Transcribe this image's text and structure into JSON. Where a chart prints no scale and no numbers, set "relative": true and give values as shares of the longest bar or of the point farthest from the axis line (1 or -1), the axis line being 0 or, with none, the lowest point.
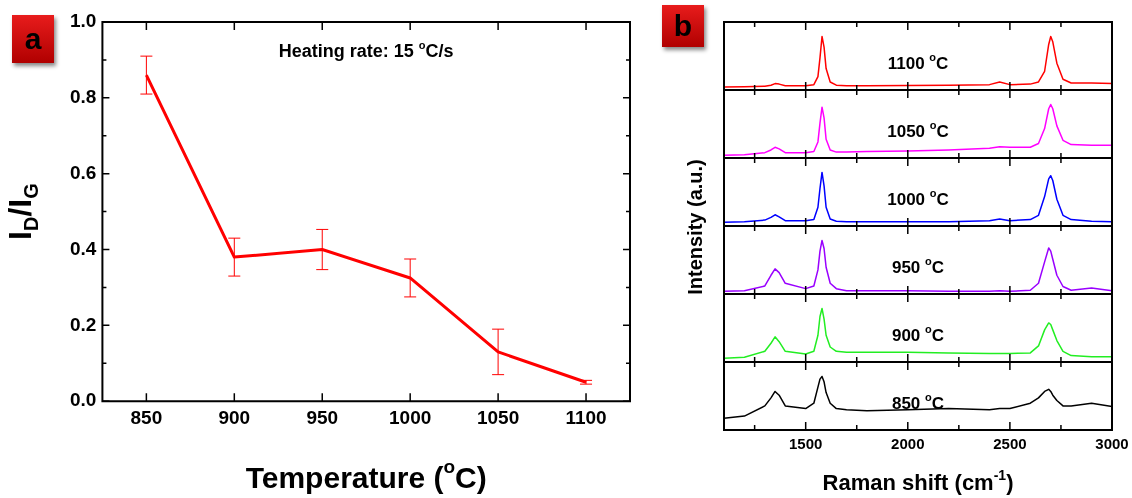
{
  "chart_data": [
    {
      "type": "line",
      "xlabel": "Temperature ($^{o}$C)",
      "ylabel": "I$_{D}$/I$_{G}$",
      "annotations": [
        "a",
        "Heating rate: 15 $^{o}$C/s"
      ],
      "x": [
        850,
        900,
        950,
        1000,
        1050,
        1100
      ],
      "values": [
        0.86,
        0.38,
        0.4,
        0.325,
        0.13,
        0.05
      ],
      "errors": [
        0.05,
        0.05,
        0.053,
        0.05,
        0.06,
        0.005
      ],
      "color": "#ff0000",
      "xlim": [
        825,
        1125
      ],
      "xticks": [
        850,
        900,
        950,
        1000,
        1050,
        1100
      ],
      "ylim": [
        0,
        1.0
      ],
      "yticks": [
        {
          "value": 0,
          "label": "0.0"
        },
        {
          "value": 0.1,
          "label": null
        },
        0.2,
        {
          "value": 0.3,
          "label": null
        },
        0.4,
        {
          "value": 0.5,
          "label": null
        },
        0.6,
        {
          "value": 0.7,
          "label": null
        },
        0.8,
        {
          "value": 0.9,
          "label": null
        },
        {
          "value": 1.0,
          "label": "1.0"
        }
      ],
      "marker": "none",
      "grid": false,
      "legend": false
    },
    {
      "type": "line",
      "relative": true,
      "annotations": [
        "b",
        "1100 $^{o}$C"
      ],
      "color": "#ff0000",
      "marker": "none",
      "legend": false,
      "tick_labels": false,
      "x": [
        1100,
        1200,
        1300,
        1330,
        1350,
        1370,
        1400,
        1500,
        1540,
        1560,
        1570,
        1580,
        1590,
        1600,
        1620,
        1650,
        1700,
        1800,
        2000,
        2200,
        2400,
        2450,
        2500,
        2600,
        2640,
        2670,
        2690,
        2700,
        2710,
        2730,
        2760,
        2800,
        2900,
        3000
      ],
      "values": [
        0.055,
        0.06,
        0.07,
        0.09,
        0.12,
        0.11,
        0.08,
        0.08,
        0.1,
        0.25,
        0.6,
        1,
        0.8,
        0.4,
        0.15,
        0.09,
        0.08,
        0.08,
        0.085,
        0.09,
        0.1,
        0.15,
        0.1,
        0.11,
        0.15,
        0.35,
        0.85,
        1,
        0.9,
        0.5,
        0.2,
        0.13,
        0.13,
        0.12
      ],
      "xlim": [
        1100,
        3000
      ],
      "xticks": [
        {
          "value": 1250,
          "label": null
        },
        1500,
        {
          "value": 1750,
          "label": null
        },
        2000,
        {
          "value": 2250,
          "label": null
        },
        2500,
        {
          "value": 2750,
          "label": null
        },
        3000
      ]
    },
    {
      "type": "line",
      "relative": true,
      "annotations": [
        "1050 $^{o}$C"
      ],
      "color": "#ff00ff",
      "marker": "none",
      "legend": false,
      "tick_labels": false,
      "x": [
        1100,
        1200,
        1300,
        1330,
        1350,
        1370,
        1400,
        1500,
        1540,
        1560,
        1570,
        1580,
        1590,
        1600,
        1620,
        1650,
        1700,
        1800,
        2000,
        2200,
        2400,
        2450,
        2500,
        2600,
        2640,
        2670,
        2690,
        2700,
        2710,
        2730,
        2760,
        2800,
        2900,
        3000
      ],
      "values": [
        0.05,
        0.06,
        0.1,
        0.15,
        0.2,
        0.17,
        0.1,
        0.1,
        0.12,
        0.3,
        0.65,
        0.95,
        0.75,
        0.35,
        0.15,
        0.11,
        0.11,
        0.12,
        0.13,
        0.15,
        0.18,
        0.21,
        0.2,
        0.2,
        0.27,
        0.55,
        0.92,
        1,
        0.92,
        0.6,
        0.33,
        0.25,
        0.24,
        0.24
      ],
      "xlim": [
        1100,
        3000
      ],
      "xticks": [
        {
          "value": 1250,
          "label": null
        },
        1500,
        {
          "value": 1750,
          "label": null
        },
        2000,
        {
          "value": 2250,
          "label": null
        },
        2500,
        {
          "value": 2750,
          "label": null
        },
        3000
      ]
    },
    {
      "type": "line",
      "relative": true,
      "annotations": [
        "1000 $^{o}$C"
      ],
      "ylabel": "Intensity (a.u.)",
      "color": "#0000ff",
      "marker": "none",
      "legend": false,
      "tick_labels": false,
      "x": [
        1100,
        1200,
        1300,
        1330,
        1350,
        1370,
        1400,
        1500,
        1540,
        1560,
        1570,
        1580,
        1590,
        1600,
        1620,
        1650,
        1700,
        1800,
        2000,
        2200,
        2400,
        2450,
        2500,
        2600,
        2640,
        2670,
        2690,
        2700,
        2710,
        2730,
        2760,
        2800,
        2900,
        3000
      ],
      "values": [
        0.07,
        0.08,
        0.11,
        0.16,
        0.21,
        0.17,
        0.1,
        0.1,
        0.12,
        0.35,
        0.7,
        1,
        0.75,
        0.35,
        0.13,
        0.09,
        0.08,
        0.08,
        0.08,
        0.08,
        0.1,
        0.13,
        0.1,
        0.12,
        0.2,
        0.55,
        0.88,
        0.94,
        0.85,
        0.5,
        0.2,
        0.12,
        0.09,
        0.08
      ],
      "xlim": [
        1100,
        3000
      ],
      "xticks": [
        {
          "value": 1250,
          "label": null
        },
        1500,
        {
          "value": 1750,
          "label": null
        },
        2000,
        {
          "value": 2250,
          "label": null
        },
        2500,
        {
          "value": 2750,
          "label": null
        },
        3000
      ]
    },
    {
      "type": "line",
      "relative": true,
      "annotations": [
        "950 $^{o}$C"
      ],
      "color": "#9900ff",
      "marker": "none",
      "legend": false,
      "tick_labels": false,
      "x": [
        1100,
        1200,
        1300,
        1330,
        1350,
        1370,
        1400,
        1500,
        1540,
        1560,
        1570,
        1580,
        1590,
        1600,
        1620,
        1650,
        1700,
        1800,
        2000,
        2200,
        2400,
        2450,
        2500,
        2600,
        2640,
        2670,
        2690,
        2700,
        2710,
        2730,
        2760,
        2800,
        2900,
        3000
      ],
      "values": [
        0.05,
        0.06,
        0.15,
        0.35,
        0.47,
        0.4,
        0.2,
        0.1,
        0.15,
        0.45,
        0.8,
        1,
        0.85,
        0.5,
        0.2,
        0.1,
        0.06,
        0.06,
        0.06,
        0.05,
        0.05,
        0.06,
        0.05,
        0.07,
        0.2,
        0.6,
        0.86,
        0.8,
        0.65,
        0.35,
        0.14,
        0.07,
        0.11,
        0.06
      ],
      "xlim": [
        1100,
        3000
      ],
      "xticks": [
        {
          "value": 1250,
          "label": null
        },
        1500,
        {
          "value": 1750,
          "label": null
        },
        2000,
        {
          "value": 2250,
          "label": null
        },
        2500,
        {
          "value": 2750,
          "label": null
        },
        3000
      ]
    },
    {
      "type": "line",
      "relative": true,
      "annotations": [
        "900 $^{o}$C"
      ],
      "color": "#22ee22",
      "marker": "none",
      "legend": false,
      "tick_labels": false,
      "x": [
        1100,
        1200,
        1300,
        1330,
        1350,
        1370,
        1400,
        1500,
        1540,
        1560,
        1570,
        1580,
        1590,
        1600,
        1620,
        1650,
        1700,
        1800,
        2000,
        2200,
        2400,
        2450,
        2500,
        2600,
        2640,
        2670,
        2690,
        2700,
        2710,
        2730,
        2760,
        2800,
        2900,
        3000
      ],
      "values": [
        0.07,
        0.09,
        0.2,
        0.35,
        0.47,
        0.38,
        0.2,
        0.15,
        0.2,
        0.5,
        0.85,
        1,
        0.8,
        0.5,
        0.28,
        0.2,
        0.18,
        0.18,
        0.18,
        0.17,
        0.16,
        0.16,
        0.16,
        0.17,
        0.3,
        0.6,
        0.73,
        0.7,
        0.6,
        0.4,
        0.2,
        0.12,
        0.1,
        0.1
      ],
      "xlim": [
        1100,
        3000
      ],
      "xticks": [
        {
          "value": 1250,
          "label": null
        },
        1500,
        {
          "value": 1750,
          "label": null
        },
        2000,
        {
          "value": 2250,
          "label": null
        },
        2500,
        {
          "value": 2750,
          "label": null
        },
        3000
      ]
    },
    {
      "type": "line",
      "relative": true,
      "annotations": [
        "850 $^{o}$C"
      ],
      "xlabel": "Raman shift (cm$^{-1}$)",
      "color": "#000000",
      "marker": "none",
      "legend": false,
      "tick_labels": "x",
      "x": [
        1100,
        1200,
        1300,
        1330,
        1350,
        1370,
        1400,
        1500,
        1540,
        1560,
        1570,
        1580,
        1590,
        1600,
        1620,
        1650,
        1700,
        1800,
        2000,
        2200,
        2400,
        2450,
        2500,
        2600,
        2640,
        2670,
        2690,
        2700,
        2710,
        2730,
        2760,
        2800,
        2900,
        3000
      ],
      "values": [
        0.22,
        0.26,
        0.45,
        0.6,
        0.72,
        0.65,
        0.45,
        0.4,
        0.5,
        0.8,
        0.95,
        1,
        0.9,
        0.7,
        0.5,
        0.4,
        0.38,
        0.36,
        0.38,
        0.4,
        0.38,
        0.4,
        0.4,
        0.5,
        0.6,
        0.72,
        0.76,
        0.72,
        0.65,
        0.55,
        0.45,
        0.45,
        0.5,
        0.44
      ],
      "xlim": [
        1100,
        3000
      ],
      "xticks": [
        {
          "value": 1250,
          "label": null
        },
        1500,
        {
          "value": 1750,
          "label": null
        },
        2000,
        {
          "value": 2250,
          "label": null
        },
        2500,
        {
          "value": 2750,
          "label": null
        },
        3000
      ]
    }
  ]
}
